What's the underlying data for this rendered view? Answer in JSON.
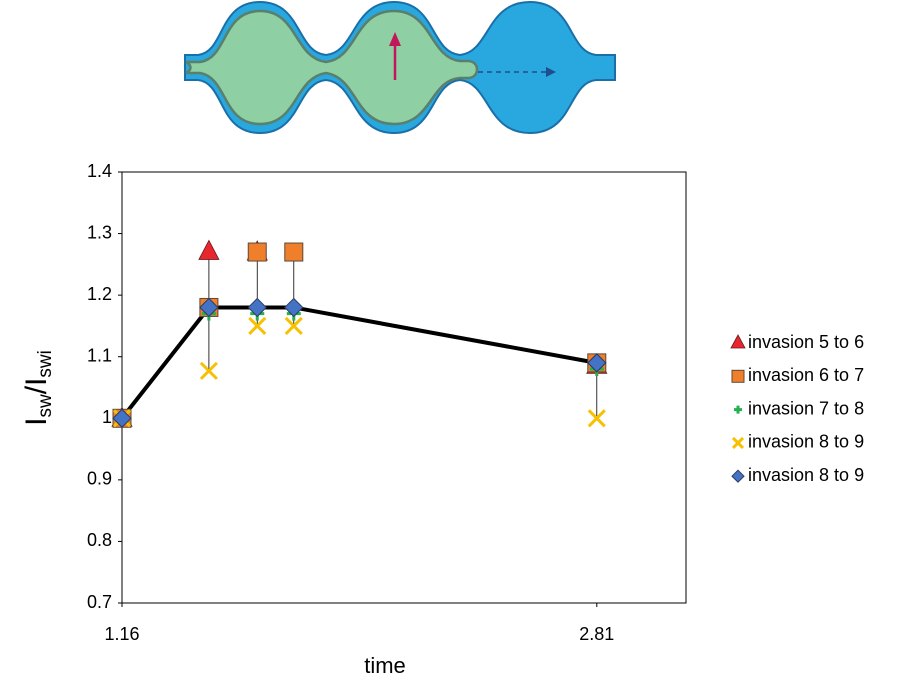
{
  "chart_data": {
    "type": "scatter",
    "x_label": "time",
    "y_label": {
      "main": "I",
      "main_sub": "sw",
      "separator": "/",
      "ref": "I",
      "ref_sub": "swi"
    },
    "x": [
      1.16,
      1.462,
      1.63,
      1.757,
      2.81
    ],
    "series": [
      {
        "name": "invasion 5 to 6",
        "color": "#e8262e",
        "marker": "triangle",
        "values": [
          1.0,
          1.271,
          1.27,
          null,
          1.086
        ]
      },
      {
        "name": "invasion 6 to 7",
        "color": "#f07f2c",
        "marker": "square",
        "values": [
          1.0,
          1.18,
          1.27,
          1.27,
          1.09
        ]
      },
      {
        "name": "invasion 7 to 8",
        "color": "#22b14c",
        "marker": "plus",
        "values": [
          1.0,
          1.17,
          1.17,
          1.17,
          1.08
        ]
      },
      {
        "name": "invasion 8 to 9",
        "color": "#f7c000",
        "marker": "x",
        "values": [
          1.0,
          1.077,
          1.15,
          1.15,
          1.0
        ]
      },
      {
        "name": "invasion 8 to 9",
        "color": "#4472c4",
        "marker": "diamond",
        "line": true,
        "line_color": "#000000",
        "values": [
          1.0,
          1.18,
          1.18,
          1.18,
          1.09
        ]
      }
    ],
    "xlim": [
      1.16,
      3.12
    ],
    "xticks": [
      1.16,
      2.81
    ],
    "ylim": [
      0.7,
      1.4
    ],
    "yticks": [
      0.7,
      0.8,
      0.9,
      1,
      1.1,
      1.2,
      1.3,
      1.4
    ],
    "range_bars": true,
    "grid": false,
    "legend": "right"
  }
}
